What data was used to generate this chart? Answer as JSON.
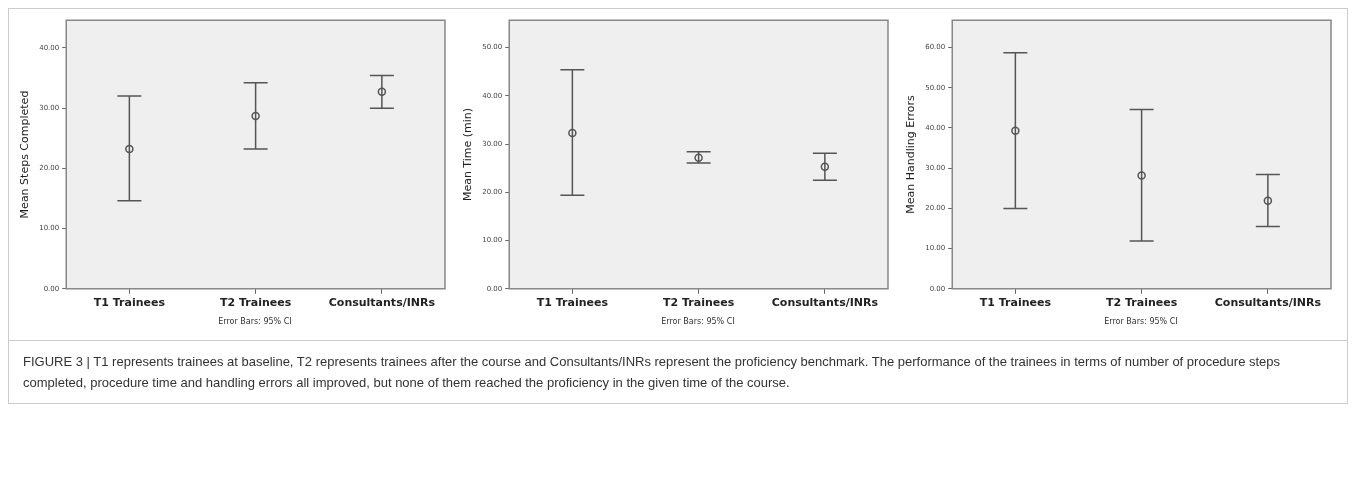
{
  "chart_data": [
    {
      "type": "scatter",
      "categories": [
        "T1 Trainees",
        "T2 Trainees",
        "Consultants/INRs"
      ],
      "ylabel": "Mean Steps Completed",
      "ylim": [
        0,
        44.6
      ],
      "yticks": [
        {
          "value": 0,
          "label": "0.00"
        },
        {
          "value": 10,
          "label": "10.00"
        },
        {
          "value": 20,
          "label": "20.00"
        },
        {
          "value": 30,
          "label": "30.00"
        },
        {
          "value": 40,
          "label": "40.00"
        }
      ],
      "series": [
        {
          "color": "#555555",
          "values": [
            23.2,
            28.7,
            32.7
          ],
          "errors": [
            [
              14.6,
              32.0
            ],
            [
              23.2,
              34.2
            ],
            [
              30.0,
              35.4
            ]
          ]
        }
      ],
      "marker": "circle",
      "legend": false,
      "annotations": [
        "Error Bars: 95% CI"
      ]
    },
    {
      "type": "scatter",
      "categories": [
        "T1 Trainees",
        "T2 Trainees",
        "Consultants/INRs"
      ],
      "ylabel": "Mean Time (min)",
      "ylim": [
        0,
        55.7
      ],
      "yticks": [
        {
          "value": 0,
          "label": "0.00"
        },
        {
          "value": 10,
          "label": "10.00"
        },
        {
          "value": 20,
          "label": "20.00"
        },
        {
          "value": 30,
          "label": "30.00"
        },
        {
          "value": 40,
          "label": "40.00"
        },
        {
          "value": 50,
          "label": "50.00"
        }
      ],
      "series": [
        {
          "color": "#555555",
          "values": [
            32.3,
            27.2,
            25.3
          ],
          "errors": [
            [
              19.4,
              45.4
            ],
            [
              26.1,
              28.4
            ],
            [
              22.5,
              28.1
            ]
          ]
        }
      ],
      "marker": "circle",
      "legend": false,
      "annotations": [
        "Error Bars: 95% CI"
      ]
    },
    {
      "type": "scatter",
      "categories": [
        "T1 Trainees",
        "T2 Trainees",
        "Consultants/INRs"
      ],
      "ylabel": "Mean Handling Errors",
      "ylim": [
        0,
        66.8
      ],
      "yticks": [
        {
          "value": 0,
          "label": "0.00"
        },
        {
          "value": 10,
          "label": "10.00"
        },
        {
          "value": 20,
          "label": "20.00"
        },
        {
          "value": 30,
          "label": "30.00"
        },
        {
          "value": 40,
          "label": "40.00"
        },
        {
          "value": 50,
          "label": "50.00"
        },
        {
          "value": 60,
          "label": "60.00"
        }
      ],
      "series": [
        {
          "color": "#555555",
          "values": [
            39.3,
            28.2,
            21.9
          ],
          "errors": [
            [
              20.0,
              58.7
            ],
            [
              11.9,
              44.6
            ],
            [
              15.5,
              28.4
            ]
          ]
        }
      ],
      "marker": "circle",
      "legend": false,
      "annotations": [
        "Error Bars: 95% CI"
      ]
    },
    {
      "type": "other",
      "annotations": [
        "FIGURE 3 | T1 represents trainees at baseline, T2 represents trainees after the course and Consultants/INRs represent the proficiency benchmark. The performance of the trainees in terms of number of procedure steps completed, procedure time and handling errors all improved, but none of them reached the proficiency in the given time of the course."
      ]
    }
  ]
}
